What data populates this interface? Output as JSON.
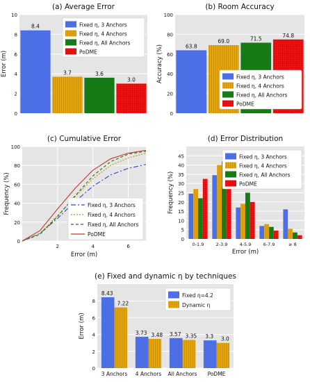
{
  "chart_data": [
    {
      "id": "a",
      "type": "bar",
      "title": "(a) Average Error",
      "xlabel": "",
      "ylabel": "Error (m)",
      "ylim": [
        0,
        10
      ],
      "yticks": [
        0,
        2,
        4,
        6,
        8,
        10
      ],
      "grid": true,
      "legend_position": "top-right",
      "series": [
        {
          "name": "Fixed η, 3 Anchors",
          "value": 8.4,
          "label": "8.4",
          "color": "#4c6fe6"
        },
        {
          "name": "Fixed η, 4 Anchors",
          "value": 3.7,
          "label": "3.7",
          "color": "#e4a60f"
        },
        {
          "name": "Fixed η, All Anchors",
          "value": 3.6,
          "label": "3.6",
          "color": "#167a16"
        },
        {
          "name": "PoDME",
          "value": 3.0,
          "label": "3.0",
          "color": "#e00f0f"
        }
      ]
    },
    {
      "id": "b",
      "type": "bar",
      "title": "(b) Room Accuracy",
      "xlabel": "",
      "ylabel": "Accuracy (%)",
      "ylim": [
        0,
        100
      ],
      "yticks": [
        0,
        20,
        40,
        60,
        80,
        100
      ],
      "grid": true,
      "legend_position": "bottom-right",
      "series": [
        {
          "name": "Fixed η, 3 Anchors",
          "value": 63.8,
          "label": "63.8",
          "color": "#4c6fe6"
        },
        {
          "name": "Fixed η, 4 Anchors",
          "value": 69.0,
          "label": "69.0",
          "color": "#e4a60f"
        },
        {
          "name": "Fixed η, All Anchors",
          "value": 71.5,
          "label": "71.5",
          "color": "#167a16"
        },
        {
          "name": "PoDME",
          "value": 74.8,
          "label": "74.8",
          "color": "#e00f0f"
        }
      ]
    },
    {
      "id": "c",
      "type": "line",
      "title": "(c) Cumulative Error",
      "xlabel": "Error (m)",
      "ylabel": "Frequency (%)",
      "xlim": [
        0,
        7
      ],
      "ylim": [
        0,
        100
      ],
      "xticks": [
        2,
        4,
        6
      ],
      "yticks": [
        0,
        20,
        40,
        60,
        80,
        100
      ],
      "grid": true,
      "legend_position": "bottom-right",
      "x": [
        0,
        1,
        2,
        3,
        4,
        5,
        6,
        7
      ],
      "series": [
        {
          "name": "Fixed η, 3 Anchors",
          "color": "#2346d6",
          "dash": "7,3,2,3",
          "values": [
            0,
            8,
            24,
            42,
            58,
            70,
            77,
            81
          ]
        },
        {
          "name": "Fixed η, 4 Anchors",
          "color": "#c09000",
          "dash": "2,2",
          "values": [
            0,
            8,
            27,
            47,
            66,
            80,
            88,
            93
          ]
        },
        {
          "name": "Fixed η, All Anchors",
          "color": "#1a6e1a",
          "dash": "4,3",
          "values": [
            0,
            7,
            26,
            48,
            69,
            84,
            92,
            95
          ]
        },
        {
          "name": "PoDME",
          "color": "#c0392b",
          "dash": "",
          "values": [
            0,
            11,
            34,
            56,
            75,
            87,
            93,
            96
          ]
        }
      ]
    },
    {
      "id": "d",
      "type": "bar",
      "title": "(d) Error Distribution",
      "xlabel": "Error (m)",
      "ylabel": "Frequency (%)",
      "ylim": [
        0,
        50
      ],
      "yticks": [
        0,
        5,
        10,
        15,
        20,
        25,
        30,
        35,
        40,
        45
      ],
      "grid": true,
      "legend_position": "top-right",
      "categories": [
        "0-1.9",
        "2-3.9",
        "4-5.9",
        "6-7.9",
        "≥ 8"
      ],
      "series": [
        {
          "name": "Fixed η, 3 Anchors",
          "color": "#4c6fe6",
          "values": [
            24.5,
            34.5,
            17,
            7,
            16
          ]
        },
        {
          "name": "Fixed η, 4 Anchors",
          "color": "#e4a60f",
          "values": [
            27,
            40,
            19,
            8,
            5.5
          ]
        },
        {
          "name": "Fixed η, All Anchors",
          "color": "#167a16",
          "values": [
            22,
            42,
            25,
            6.5,
            3.5
          ]
        },
        {
          "name": "PoDME",
          "color": "#e00f0f",
          "values": [
            32.5,
            41,
            20,
            4.5,
            2
          ]
        }
      ]
    },
    {
      "id": "e",
      "type": "bar",
      "title": "(e) Fixed and dynamic η by techniques",
      "xlabel": "",
      "ylabel": "Error (m)",
      "ylim": [
        0,
        10
      ],
      "yticks": [
        0,
        2,
        4,
        6,
        8
      ],
      "grid": true,
      "legend_position": "top-right",
      "categories": [
        "3 Anchors",
        "4 Anchors",
        "All Anchors",
        "PoDME"
      ],
      "series": [
        {
          "name": "Fixed η=4.2",
          "color": "#4c6fe6",
          "values": [
            8.43,
            3.73,
            3.57,
            3.3
          ],
          "labels": [
            "8.43",
            "3.73",
            "3.57",
            "3.3"
          ]
        },
        {
          "name": "Dynamic η",
          "color": "#e4a60f",
          "values": [
            7.22,
            3.48,
            3.35,
            3.0
          ],
          "labels": [
            "7.22",
            "3.48",
            "3.35",
            "3.0"
          ]
        }
      ]
    }
  ]
}
